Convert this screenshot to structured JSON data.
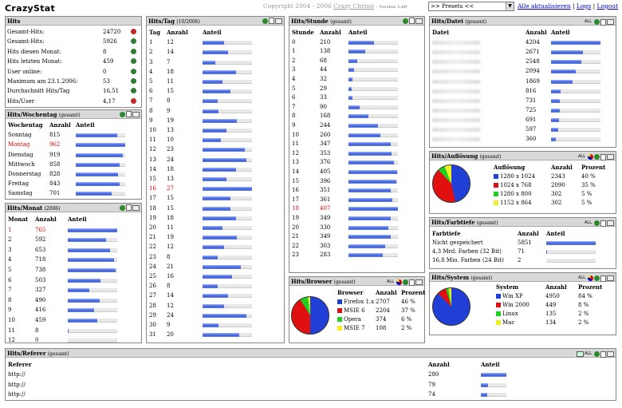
{
  "app": {
    "logo": "CrazyStat",
    "copyright": "Copyright 2004 - 2006",
    "author": "Crazy Chrissi",
    "version": "- Version 1.60",
    "presets": ">> Presets <<",
    "refresh_all": "Alle aktualisieren",
    "logs": "Logs",
    "logout": "Logout",
    "sep": "|"
  },
  "hits": {
    "title": "Hits",
    "rows": [
      {
        "label": "Gesamt-Hits:",
        "value": "24720"
      },
      {
        "label": "Gesamt-Hits:",
        "value": "5926"
      },
      {
        "label": "Hits diesen Monat:",
        "value": "8"
      },
      {
        "label": "Hits letzten Monat:",
        "value": "459"
      },
      {
        "label": "User online:",
        "value": "0"
      },
      {
        "label": "Maximum am 23.1.2006:",
        "value": "53"
      },
      {
        "label": "Durchschnitt Hits/Tag",
        "value": "16,51"
      },
      {
        "label": "Hits/User",
        "value": "4,17"
      }
    ]
  },
  "wochentag": {
    "title": "Hits/Wochentag",
    "sub": "(gesamt)",
    "headers": [
      "Wochentag",
      "Anzahl",
      "Anteil"
    ],
    "rows": [
      {
        "label": "Sonntag",
        "value": "815",
        "pct": 0.84
      },
      {
        "label": "Montag",
        "value": "962",
        "pct": 1.0,
        "hl": true
      },
      {
        "label": "Dienstag",
        "value": "919",
        "pct": 0.95
      },
      {
        "label": "Mittwoch",
        "value": "858",
        "pct": 0.89
      },
      {
        "label": "Donnerstag",
        "value": "828",
        "pct": 0.86
      },
      {
        "label": "Freitag",
        "value": "843",
        "pct": 0.88
      },
      {
        "label": "Samstag",
        "value": "701",
        "pct": 0.73
      }
    ]
  },
  "monat": {
    "title": "Hits/Monat",
    "sub": "(2006)",
    "headers": [
      "Monat",
      "Anzahl",
      "Anteil"
    ],
    "rows": [
      {
        "label": "1",
        "value": "765",
        "pct": 1.0,
        "hl": true
      },
      {
        "label": "2",
        "value": "592",
        "pct": 0.77
      },
      {
        "label": "3",
        "value": "653",
        "pct": 0.85
      },
      {
        "label": "4",
        "value": "718",
        "pct": 0.94
      },
      {
        "label": "5",
        "value": "738",
        "pct": 0.96
      },
      {
        "label": "6",
        "value": "503",
        "pct": 0.66
      },
      {
        "label": "7",
        "value": "327",
        "pct": 0.43
      },
      {
        "label": "8",
        "value": "490",
        "pct": 0.64
      },
      {
        "label": "9",
        "value": "416",
        "pct": 0.54
      },
      {
        "label": "10",
        "value": "459",
        "pct": 0.6
      },
      {
        "label": "11",
        "value": "8",
        "pct": 0.01
      },
      {
        "label": "12",
        "value": "0",
        "pct": 0
      }
    ]
  },
  "tag": {
    "title": "Hits/Tag",
    "sub": "(10/2006)",
    "headers": [
      "Tag",
      "Anzahl",
      "Anteil"
    ],
    "rows": [
      {
        "label": "1",
        "value": "12",
        "pct": 0.44
      },
      {
        "label": "2",
        "value": "14",
        "pct": 0.52
      },
      {
        "label": "3",
        "value": "7",
        "pct": 0.26
      },
      {
        "label": "4",
        "value": "18",
        "pct": 0.67
      },
      {
        "label": "5",
        "value": "11",
        "pct": 0.41
      },
      {
        "label": "6",
        "value": "15",
        "pct": 0.56
      },
      {
        "label": "7",
        "value": "8",
        "pct": 0.3
      },
      {
        "label": "8",
        "value": "9",
        "pct": 0.33
      },
      {
        "label": "9",
        "value": "19",
        "pct": 0.7
      },
      {
        "label": "10",
        "value": "13",
        "pct": 0.48
      },
      {
        "label": "11",
        "value": "10",
        "pct": 0.37
      },
      {
        "label": "12",
        "value": "23",
        "pct": 0.85
      },
      {
        "label": "13",
        "value": "24",
        "pct": 0.89
      },
      {
        "label": "14",
        "value": "18",
        "pct": 0.67
      },
      {
        "label": "15",
        "value": "13",
        "pct": 0.48
      },
      {
        "label": "16",
        "value": "27",
        "pct": 1.0,
        "hl": true
      },
      {
        "label": "17",
        "value": "15",
        "pct": 0.56
      },
      {
        "label": "18",
        "value": "15",
        "pct": 0.56
      },
      {
        "label": "19",
        "value": "18",
        "pct": 0.67
      },
      {
        "label": "20",
        "value": "11",
        "pct": 0.41
      },
      {
        "label": "21",
        "value": "19",
        "pct": 0.7
      },
      {
        "label": "22",
        "value": "12",
        "pct": 0.44
      },
      {
        "label": "23",
        "value": "8",
        "pct": 0.3
      },
      {
        "label": "24",
        "value": "21",
        "pct": 0.78
      },
      {
        "label": "25",
        "value": "16",
        "pct": 0.59
      },
      {
        "label": "26",
        "value": "8",
        "pct": 0.3
      },
      {
        "label": "27",
        "value": "14",
        "pct": 0.52
      },
      {
        "label": "28",
        "value": "12",
        "pct": 0.44
      },
      {
        "label": "29",
        "value": "24",
        "pct": 0.89
      },
      {
        "label": "30",
        "value": "9",
        "pct": 0.33
      },
      {
        "label": "31",
        "value": "20",
        "pct": 0.74
      }
    ]
  },
  "stunde": {
    "title": "Hits/Stunde",
    "sub": "(gesamt)",
    "headers": [
      "Stunde",
      "Anzahl",
      "Anteil"
    ],
    "rows": [
      {
        "label": "0",
        "value": "210",
        "pct": 0.52
      },
      {
        "label": "1",
        "value": "138",
        "pct": 0.34
      },
      {
        "label": "2",
        "value": "68",
        "pct": 0.17
      },
      {
        "label": "3",
        "value": "44",
        "pct": 0.11
      },
      {
        "label": "4",
        "value": "32",
        "pct": 0.08
      },
      {
        "label": "5",
        "value": "29",
        "pct": 0.07
      },
      {
        "label": "6",
        "value": "33",
        "pct": 0.08
      },
      {
        "label": "7",
        "value": "90",
        "pct": 0.22
      },
      {
        "label": "8",
        "value": "168",
        "pct": 0.41
      },
      {
        "label": "9",
        "value": "244",
        "pct": 0.6
      },
      {
        "label": "10",
        "value": "260",
        "pct": 0.64
      },
      {
        "label": "11",
        "value": "347",
        "pct": 0.85
      },
      {
        "label": "12",
        "value": "353",
        "pct": 0.87
      },
      {
        "label": "13",
        "value": "376",
        "pct": 0.92
      },
      {
        "label": "14",
        "value": "405",
        "pct": 0.99
      },
      {
        "label": "15",
        "value": "396",
        "pct": 0.97
      },
      {
        "label": "16",
        "value": "351",
        "pct": 0.86
      },
      {
        "label": "17",
        "value": "361",
        "pct": 0.89
      },
      {
        "label": "18",
        "value": "407",
        "pct": 1.0,
        "hl": true
      },
      {
        "label": "19",
        "value": "349",
        "pct": 0.86
      },
      {
        "label": "20",
        "value": "330",
        "pct": 0.81
      },
      {
        "label": "21",
        "value": "349",
        "pct": 0.86
      },
      {
        "label": "22",
        "value": "303",
        "pct": 0.74
      },
      {
        "label": "23",
        "value": "283",
        "pct": 0.7
      }
    ]
  },
  "browser": {
    "title": "Hits/Browser",
    "sub": "(gesamt)",
    "all": "ALL",
    "headers": [
      "Browser",
      "Anzahl",
      "Prozent"
    ],
    "rows": [
      {
        "label": "Firefox 1.x",
        "value": "2707",
        "pct": "46 %",
        "color": "#1f3fd6"
      },
      {
        "label": "MSIE 6",
        "value": "2204",
        "pct": "37 %",
        "color": "#e01010"
      },
      {
        "label": "Opera",
        "value": "374",
        "pct": "6 %",
        "color": "#20d020"
      },
      {
        "label": "MSIE 7",
        "value": "108",
        "pct": "2 %",
        "color": "#f0f020"
      }
    ]
  },
  "datei": {
    "title": "Hits/Datei",
    "sub": "(gesamt)",
    "all": "ALL",
    "headers": [
      "Datei",
      "Anzahl",
      "Anteil"
    ],
    "rows": [
      {
        "value": "4204",
        "pct": 1.0
      },
      {
        "value": "2671",
        "pct": 0.64
      },
      {
        "value": "2548",
        "pct": 0.61
      },
      {
        "value": "2094",
        "pct": 0.5
      },
      {
        "value": "1869",
        "pct": 0.44
      },
      {
        "value": "816",
        "pct": 0.19
      },
      {
        "value": "731",
        "pct": 0.17
      },
      {
        "value": "725",
        "pct": 0.17
      },
      {
        "value": "691",
        "pct": 0.16
      },
      {
        "value": "597",
        "pct": 0.14
      },
      {
        "value": "360",
        "pct": 0.09
      }
    ]
  },
  "aufloesung": {
    "title": "Hits/Auflösung",
    "sub": "(gesamt)",
    "all": "ALL",
    "headers": [
      "Auflösung",
      "Anzahl",
      "Prozent"
    ],
    "rows": [
      {
        "label": "1280 x 1024",
        "value": "2343",
        "pct": "40 %",
        "color": "#1f3fd6"
      },
      {
        "label": "1024 x 768",
        "value": "2090",
        "pct": "35 %",
        "color": "#e01010"
      },
      {
        "label": "1280 x 800",
        "value": "302",
        "pct": "5 %",
        "color": "#20d020"
      },
      {
        "label": "1152 x 864",
        "value": "302",
        "pct": "5 %",
        "color": "#f0f020"
      }
    ]
  },
  "farbtiefe": {
    "title": "Hits/Farbtiefe",
    "sub": "(gesamt)",
    "all": "ALL",
    "headers": [
      "Farbtiefe",
      "Anzahl",
      "Anteil"
    ],
    "rows": [
      {
        "label": "Nicht gespeichert",
        "value": "5851",
        "pct": 1.0
      },
      {
        "label": "4,3 Mrd. Farben (32 Bit)",
        "value": "71",
        "pct": 0.012
      },
      {
        "label": "16,8 Mio. Farben (24 Bit)",
        "value": "2",
        "pct": 0.0
      }
    ]
  },
  "system": {
    "title": "Hits/System",
    "sub": "(gesamt)",
    "all": "ALL",
    "headers": [
      "System",
      "Anzahl",
      "Prozent"
    ],
    "rows": [
      {
        "label": "Win XP",
        "value": "4950",
        "pct": "84 %",
        "color": "#1f3fd6"
      },
      {
        "label": "Win 2000",
        "value": "449",
        "pct": "8 %",
        "color": "#e01010"
      },
      {
        "label": "Linux",
        "value": "135",
        "pct": "2 %",
        "color": "#20d020"
      },
      {
        "label": "Mac",
        "value": "134",
        "pct": "2 %",
        "color": "#f0f020"
      }
    ]
  },
  "referer": {
    "title": "Hits/Referer",
    "sub": "(gesamt)",
    "all": "ALL",
    "headers": [
      "Referer",
      "Anzahl",
      "Anteil"
    ],
    "rows": [
      {
        "label": "http://",
        "value": "280",
        "pct": 1.0
      },
      {
        "label": "http://",
        "value": "79",
        "pct": 0.28
      },
      {
        "label": "http://",
        "value": "74",
        "pct": 0.26
      }
    ]
  },
  "colors": {
    "bar": "#3a5bd6",
    "header": "#d8d8d8",
    "highlight": "#dd0000"
  }
}
